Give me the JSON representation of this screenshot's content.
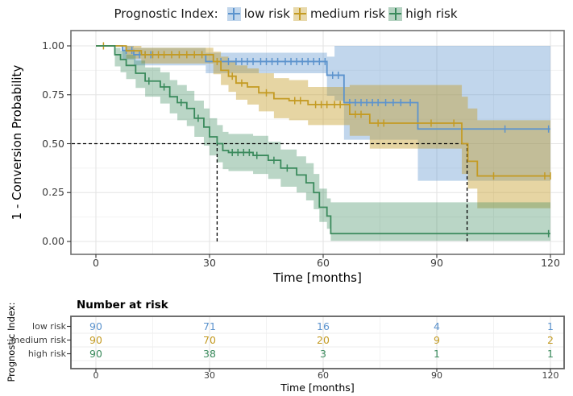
{
  "legend": {
    "title": "Prognostic Index:"
  },
  "chart_data": {
    "type": "line",
    "subtype": "kaplan-meier-step-with-confidence-bands",
    "title": "Prognostic Index:",
    "xlabel": "Time [months]",
    "ylabel": "1 - Conversion Probability",
    "xlim": [
      0,
      120
    ],
    "ylim": [
      0,
      1
    ],
    "xticks": [
      0,
      30,
      60,
      90,
      120
    ],
    "xticklabels": [
      "0",
      "30",
      "60",
      "90",
      "120"
    ],
    "yticks": [
      0,
      0.25,
      0.5,
      0.75,
      1
    ],
    "yticklabels": [
      "0.00",
      "0.25",
      "0.50",
      "0.75",
      "1.00"
    ],
    "grid": "major and minor, light gray, on",
    "legend_position": "top",
    "median_lines": {
      "y": 0.5,
      "x": [
        32,
        98
      ]
    },
    "series": [
      {
        "name": "low risk",
        "color": "#5c93cd",
        "band_opacity": 0.38,
        "steps": [
          [
            0,
            1.0
          ],
          [
            7,
            0.977
          ],
          [
            10,
            0.955
          ],
          [
            29,
            0.92
          ],
          [
            61,
            0.85
          ],
          [
            65.5,
            0.71
          ],
          [
            85,
            0.575
          ]
        ],
        "censors": [
          [
            8,
            0.977
          ],
          [
            9.5,
            0.977
          ],
          [
            11.5,
            0.955
          ],
          [
            13,
            0.955
          ],
          [
            14.5,
            0.955
          ],
          [
            33,
            0.92
          ],
          [
            35,
            0.92
          ],
          [
            37,
            0.92
          ],
          [
            38.5,
            0.92
          ],
          [
            40,
            0.92
          ],
          [
            41.5,
            0.92
          ],
          [
            43.5,
            0.92
          ],
          [
            45,
            0.92
          ],
          [
            46.5,
            0.92
          ],
          [
            48,
            0.92
          ],
          [
            50,
            0.92
          ],
          [
            51.5,
            0.92
          ],
          [
            53,
            0.92
          ],
          [
            54.5,
            0.92
          ],
          [
            56,
            0.92
          ],
          [
            57.5,
            0.92
          ],
          [
            59,
            0.92
          ],
          [
            60.5,
            0.92
          ],
          [
            62.5,
            0.85
          ],
          [
            64,
            0.85
          ],
          [
            67,
            0.71
          ],
          [
            68.5,
            0.71
          ],
          [
            70,
            0.71
          ],
          [
            71.5,
            0.71
          ],
          [
            73,
            0.71
          ],
          [
            74.5,
            0.71
          ],
          [
            76.5,
            0.71
          ],
          [
            78.5,
            0.71
          ],
          [
            80.5,
            0.71
          ],
          [
            83,
            0.71
          ],
          [
            108,
            0.575
          ],
          [
            119.5,
            0.575
          ]
        ],
        "band": [
          [
            0,
            1,
            1
          ],
          [
            7,
            0.93,
            1.0
          ],
          [
            10,
            0.9,
            0.99
          ],
          [
            29,
            0.86,
            0.965
          ],
          [
            61,
            0.745,
            0.945
          ],
          [
            63,
            0.72,
            1.0
          ],
          [
            65.5,
            0.52,
            1.0
          ],
          [
            85,
            0.31,
            1.0
          ]
        ]
      },
      {
        "name": "medium risk",
        "color": "#c49b23",
        "band_opacity": 0.42,
        "steps": [
          [
            0,
            1.0
          ],
          [
            8,
            0.975
          ],
          [
            12,
            0.955
          ],
          [
            31,
            0.92
          ],
          [
            33,
            0.875
          ],
          [
            35,
            0.845
          ],
          [
            37,
            0.81
          ],
          [
            40,
            0.79
          ],
          [
            43,
            0.76
          ],
          [
            47,
            0.73
          ],
          [
            51,
            0.72
          ],
          [
            56,
            0.7
          ],
          [
            67,
            0.65
          ],
          [
            72.3,
            0.605
          ],
          [
            96.6,
            0.5
          ],
          [
            98.2,
            0.41
          ],
          [
            100.7,
            0.335
          ]
        ],
        "censors": [
          [
            2,
            1.0
          ],
          [
            13,
            0.955
          ],
          [
            15,
            0.955
          ],
          [
            16.5,
            0.955
          ],
          [
            18,
            0.955
          ],
          [
            20,
            0.955
          ],
          [
            22,
            0.955
          ],
          [
            24,
            0.955
          ],
          [
            26,
            0.955
          ],
          [
            28,
            0.955
          ],
          [
            32,
            0.92
          ],
          [
            36,
            0.845
          ],
          [
            38.5,
            0.81
          ],
          [
            45,
            0.76
          ],
          [
            52.5,
            0.72
          ],
          [
            54,
            0.72
          ],
          [
            58,
            0.7
          ],
          [
            59.5,
            0.7
          ],
          [
            61,
            0.7
          ],
          [
            63,
            0.7
          ],
          [
            64.5,
            0.7
          ],
          [
            68.5,
            0.65
          ],
          [
            70,
            0.65
          ],
          [
            74.5,
            0.605
          ],
          [
            76,
            0.605
          ],
          [
            88.5,
            0.605
          ],
          [
            94.5,
            0.605
          ],
          [
            105,
            0.335
          ],
          [
            118.5,
            0.335
          ],
          [
            120,
            0.335
          ]
        ],
        "band": [
          [
            0,
            1,
            1
          ],
          [
            8,
            0.935,
            1.0
          ],
          [
            12,
            0.91,
            0.99
          ],
          [
            31,
            0.855,
            0.97
          ],
          [
            33,
            0.8,
            0.945
          ],
          [
            35,
            0.765,
            0.925
          ],
          [
            37,
            0.725,
            0.9
          ],
          [
            40,
            0.7,
            0.885
          ],
          [
            43,
            0.665,
            0.86
          ],
          [
            47,
            0.63,
            0.835
          ],
          [
            51,
            0.62,
            0.825
          ],
          [
            56,
            0.595,
            0.79
          ],
          [
            67,
            0.54,
            0.8
          ],
          [
            72.3,
            0.475,
            0.8
          ],
          [
            96.6,
            0.345,
            0.74
          ],
          [
            98.2,
            0.27,
            0.68
          ],
          [
            100.7,
            0.17,
            0.62
          ]
        ]
      },
      {
        "name": "high risk",
        "color": "#3a8a5c",
        "band_opacity": 0.35,
        "steps": [
          [
            0,
            1.0
          ],
          [
            5,
            0.955
          ],
          [
            6.5,
            0.93
          ],
          [
            8,
            0.9
          ],
          [
            10.5,
            0.86
          ],
          [
            13,
            0.82
          ],
          [
            17,
            0.79
          ],
          [
            19.5,
            0.74
          ],
          [
            21.5,
            0.71
          ],
          [
            24,
            0.68
          ],
          [
            26,
            0.63
          ],
          [
            28.5,
            0.585
          ],
          [
            30,
            0.535
          ],
          [
            32,
            0.5
          ],
          [
            33.5,
            0.465
          ],
          [
            35,
            0.455
          ],
          [
            41.5,
            0.44
          ],
          [
            45.5,
            0.415
          ],
          [
            48.8,
            0.375
          ],
          [
            53,
            0.34
          ],
          [
            55.5,
            0.3
          ],
          [
            57.5,
            0.25
          ],
          [
            59,
            0.175
          ],
          [
            61,
            0.13
          ],
          [
            62,
            0.04
          ]
        ],
        "censors": [
          [
            14,
            0.82
          ],
          [
            18,
            0.79
          ],
          [
            22.5,
            0.71
          ],
          [
            27,
            0.63
          ],
          [
            36,
            0.455
          ],
          [
            37.5,
            0.455
          ],
          [
            39,
            0.455
          ],
          [
            40.5,
            0.455
          ],
          [
            42.5,
            0.44
          ],
          [
            47,
            0.415
          ],
          [
            50.5,
            0.375
          ],
          [
            119.5,
            0.04
          ]
        ],
        "band": [
          [
            0,
            1,
            1
          ],
          [
            5,
            0.895,
            0.99
          ],
          [
            6.5,
            0.865,
            0.975
          ],
          [
            8,
            0.83,
            0.955
          ],
          [
            10.5,
            0.785,
            0.925
          ],
          [
            13,
            0.74,
            0.89
          ],
          [
            17,
            0.705,
            0.865
          ],
          [
            19.5,
            0.655,
            0.825
          ],
          [
            21.5,
            0.62,
            0.8
          ],
          [
            24,
            0.59,
            0.77
          ],
          [
            26,
            0.535,
            0.72
          ],
          [
            28.5,
            0.49,
            0.68
          ],
          [
            30,
            0.44,
            0.63
          ],
          [
            32,
            0.405,
            0.595
          ],
          [
            33.5,
            0.37,
            0.56
          ],
          [
            35,
            0.36,
            0.55
          ],
          [
            41.5,
            0.345,
            0.54
          ],
          [
            45.5,
            0.32,
            0.51
          ],
          [
            48.8,
            0.28,
            0.47
          ],
          [
            53,
            0.25,
            0.435
          ],
          [
            55.5,
            0.21,
            0.4
          ],
          [
            57.5,
            0.165,
            0.345
          ],
          [
            59,
            0.1,
            0.27
          ],
          [
            61,
            0.065,
            0.22
          ],
          [
            62,
            0.003,
            0.2
          ]
        ]
      }
    ],
    "risk_table": {
      "title": "Number at risk",
      "ylabel": "Prognostic Index:",
      "xlabel": "Time [months]",
      "times": [
        0,
        30,
        60,
        90,
        120
      ],
      "rows": [
        {
          "label": "low risk",
          "values": [
            90,
            71,
            16,
            4,
            1
          ]
        },
        {
          "label": "medium risk",
          "values": [
            90,
            70,
            20,
            9,
            2
          ]
        },
        {
          "label": "high risk",
          "values": [
            90,
            38,
            3,
            1,
            1
          ]
        }
      ]
    }
  }
}
